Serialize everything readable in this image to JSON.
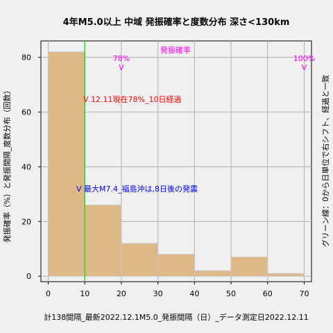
{
  "chart_data": {
    "type": "bar",
    "title": "4年M5.0以上 中域 発振確率と度数分布 深さ<130km",
    "ylabel": "発振確率（%）と発振間隔_度数分布（回数）",
    "right_label": "グリーン線：0から日単位で右シフト、経過と一致",
    "footer": "計138間隔_最新2022.12.1M5.0_発振間隔（日）_データ測定日2022.12.11",
    "bin_edges": [
      0,
      10,
      20,
      30,
      40,
      50,
      60,
      70
    ],
    "values": [
      82,
      26,
      12,
      8,
      2,
      7,
      1
    ],
    "xlim": [
      -2,
      72
    ],
    "ylim": [
      -2,
      86
    ],
    "xticks": [
      "0",
      "10",
      "20",
      "30",
      "40",
      "50",
      "60",
      "70"
    ],
    "yticks": [
      "0",
      "20",
      "40",
      "60",
      "80"
    ],
    "grid": true,
    "colors": {
      "bar": "#deb887",
      "green_line": "#00dd00",
      "magenta": "#ff00ff",
      "red": "#ff0000",
      "blue": "#0000ff"
    },
    "green_line_x": 10,
    "annotations": {
      "prob_label": "発振確率",
      "p78": "78%",
      "p78_x": 20,
      "p100": "100%",
      "p100_x": 70,
      "arrow_glyph": "V",
      "red_text": "V 12.11現在78%_10日経過",
      "blue_text": "V 最大M7.4_福島沖は,8日後の発震"
    }
  }
}
